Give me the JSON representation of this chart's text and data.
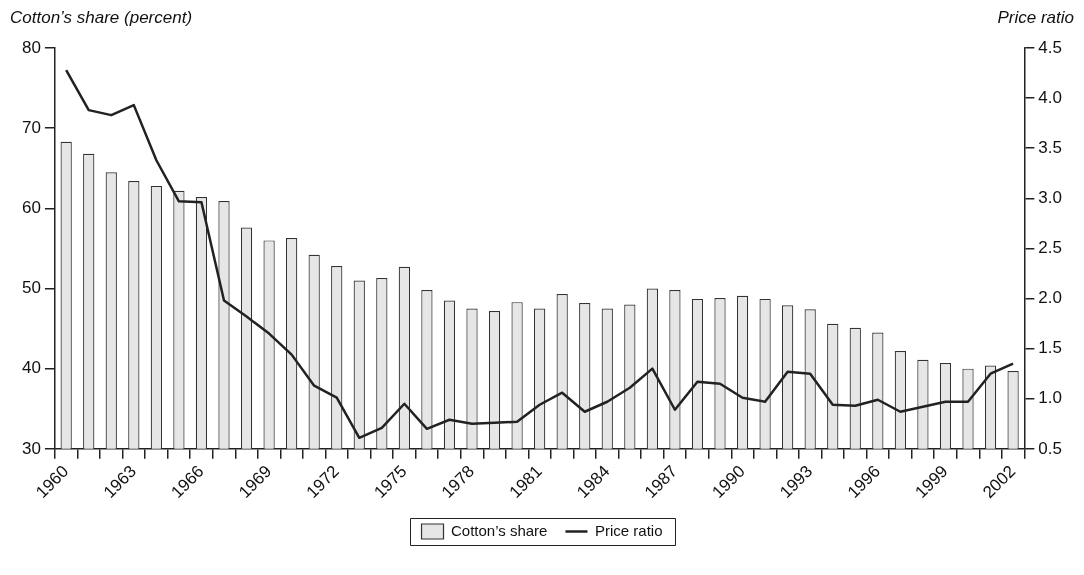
{
  "chart_data": {
    "type": "bar",
    "ylabel": "Cotton’s share (percent)",
    "y2label": "Price ratio",
    "categories": [
      "1960",
      null,
      null,
      "1963",
      null,
      null,
      "1966",
      null,
      null,
      "1969",
      null,
      null,
      "1972",
      null,
      null,
      "1975",
      null,
      null,
      "1978",
      null,
      null,
      "1981",
      null,
      null,
      "1984",
      null,
      null,
      "1987",
      null,
      null,
      "1990",
      null,
      null,
      "1993",
      null,
      null,
      "1996",
      null,
      null,
      "1999",
      null,
      null,
      "2002"
    ],
    "series": [
      {
        "name": "Cotton’s share",
        "color": "#e6e6e6",
        "values": [
          68.3,
          66.8,
          64.5,
          63.4,
          62.8,
          62.2,
          61.4,
          60.9,
          57.6,
          56.0,
          56.3,
          54.2,
          52.8,
          51.0,
          51.3,
          52.7,
          49.8,
          48.5,
          47.5,
          47.2,
          48.3,
          47.5,
          49.3,
          48.2,
          47.5,
          48.0,
          50.0,
          49.8,
          48.7,
          48.8,
          49.1,
          48.7,
          47.9,
          47.4,
          45.6,
          45.1,
          44.5,
          42.2,
          41.1,
          40.7,
          40.0,
          40.4,
          39.7
        ]
      },
      {
        "name": "Price ratio",
        "type": "line",
        "axis": "y2",
        "color": "#222222",
        "values": [
          4.28,
          3.88,
          3.83,
          3.93,
          3.38,
          2.97,
          2.96,
          1.98,
          1.82,
          1.65,
          1.44,
          1.13,
          1.01,
          0.61,
          0.71,
          0.95,
          0.7,
          0.79,
          0.75,
          0.76,
          0.77,
          0.94,
          1.06,
          0.87,
          0.97,
          1.11,
          1.3,
          0.89,
          1.17,
          1.15,
          1.01,
          0.97,
          1.27,
          1.25,
          0.94,
          0.93,
          0.99,
          0.87,
          0.92,
          0.97,
          0.97,
          1.25,
          1.35
        ]
      }
    ],
    "ylim": [
      30,
      80
    ],
    "yticks": [
      30,
      40,
      50,
      60,
      70,
      80
    ],
    "y2lim": [
      0.5,
      4.5
    ],
    "y2ticks": [
      {
        "value": 0.5,
        "label": "0.5"
      },
      {
        "value": 1,
        "label": "1.0"
      },
      {
        "value": 1.5,
        "label": "1.5"
      },
      {
        "value": 2,
        "label": "2.0"
      },
      {
        "value": 2.5,
        "label": "2.5"
      },
      {
        "value": 3,
        "label": "3.0"
      },
      {
        "value": 3.5,
        "label": "3.5"
      },
      {
        "value": 4,
        "label": "4.0"
      },
      {
        "value": 4.5,
        "label": "4.5"
      }
    ],
    "legend": "bottom"
  }
}
